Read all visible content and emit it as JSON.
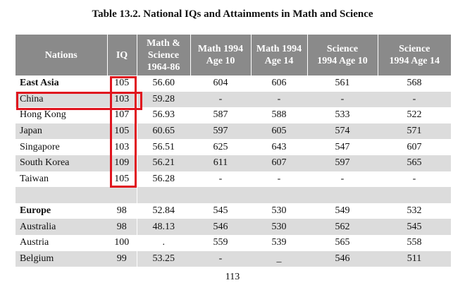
{
  "title": "Table 13.2. National IQs and Attainments in Math and Science",
  "headers": {
    "nations": "Nations",
    "iq": "IQ",
    "ms_l1": "Math &",
    "ms_l2": "Science",
    "ms_l3": "1964-86",
    "m10_l1": "Math 1994",
    "m10_l2": "Age 10",
    "m14_l1": "Math 1994",
    "m14_l2": "Age 14",
    "s10_l1": "Science",
    "s10_l2": "1994 Age 10",
    "s14_l1": "Science",
    "s14_l2": "1994 Age 14"
  },
  "rows": [
    {
      "name": "East Asia",
      "iq": "105",
      "ms": "56.60",
      "m10": "604",
      "m14": "606",
      "s10": "561",
      "s14": "568"
    },
    {
      "name": "China",
      "iq": "103",
      "ms": "59.28",
      "m10": "-",
      "m14": "-",
      "s10": "-",
      "s14": "-"
    },
    {
      "name": "Hong Kong",
      "iq": "107",
      "ms": "56.93",
      "m10": "587",
      "m14": "588",
      "s10": "533",
      "s14": "522"
    },
    {
      "name": "Japan",
      "iq": "105",
      "ms": "60.65",
      "m10": "597",
      "m14": "605",
      "s10": "574",
      "s14": "571"
    },
    {
      "name": "Singapore",
      "iq": "103",
      "ms": "56.51",
      "m10": "625",
      "m14": "643",
      "s10": "547",
      "s14": "607"
    },
    {
      "name": "South Korea",
      "iq": "109",
      "ms": "56.21",
      "m10": "611",
      "m14": "607",
      "s10": "597",
      "s14": "565"
    },
    {
      "name": "Taiwan",
      "iq": "105",
      "ms": "56.28",
      "m10": "-",
      "m14": "-",
      "s10": "-",
      "s14": "-"
    },
    {
      "name": "",
      "iq": "",
      "ms": "",
      "m10": "",
      "m14": "",
      "s10": "",
      "s14": ""
    },
    {
      "name": "Europe",
      "iq": "98",
      "ms": "52.84",
      "m10": "545",
      "m14": "530",
      "s10": "549",
      "s14": "532"
    },
    {
      "name": "Australia",
      "iq": "98",
      "ms": "48.13",
      "m10": "546",
      "m14": "530",
      "s10": "562",
      "s14": "545"
    },
    {
      "name": "Austria",
      "iq": "100",
      "ms": ".",
      "m10": "559",
      "m14": "539",
      "s10": "565",
      "s14": "558"
    },
    {
      "name": "Belgium",
      "iq": "99",
      "ms": "53.25",
      "m10": "-",
      "m14": "_",
      "s10": "546",
      "s14": "511"
    }
  ],
  "page_number": "113",
  "colors": {
    "header_bg": "#8a8a8a",
    "row_shade": "#dcdcdc",
    "highlight": "#e0141e"
  }
}
